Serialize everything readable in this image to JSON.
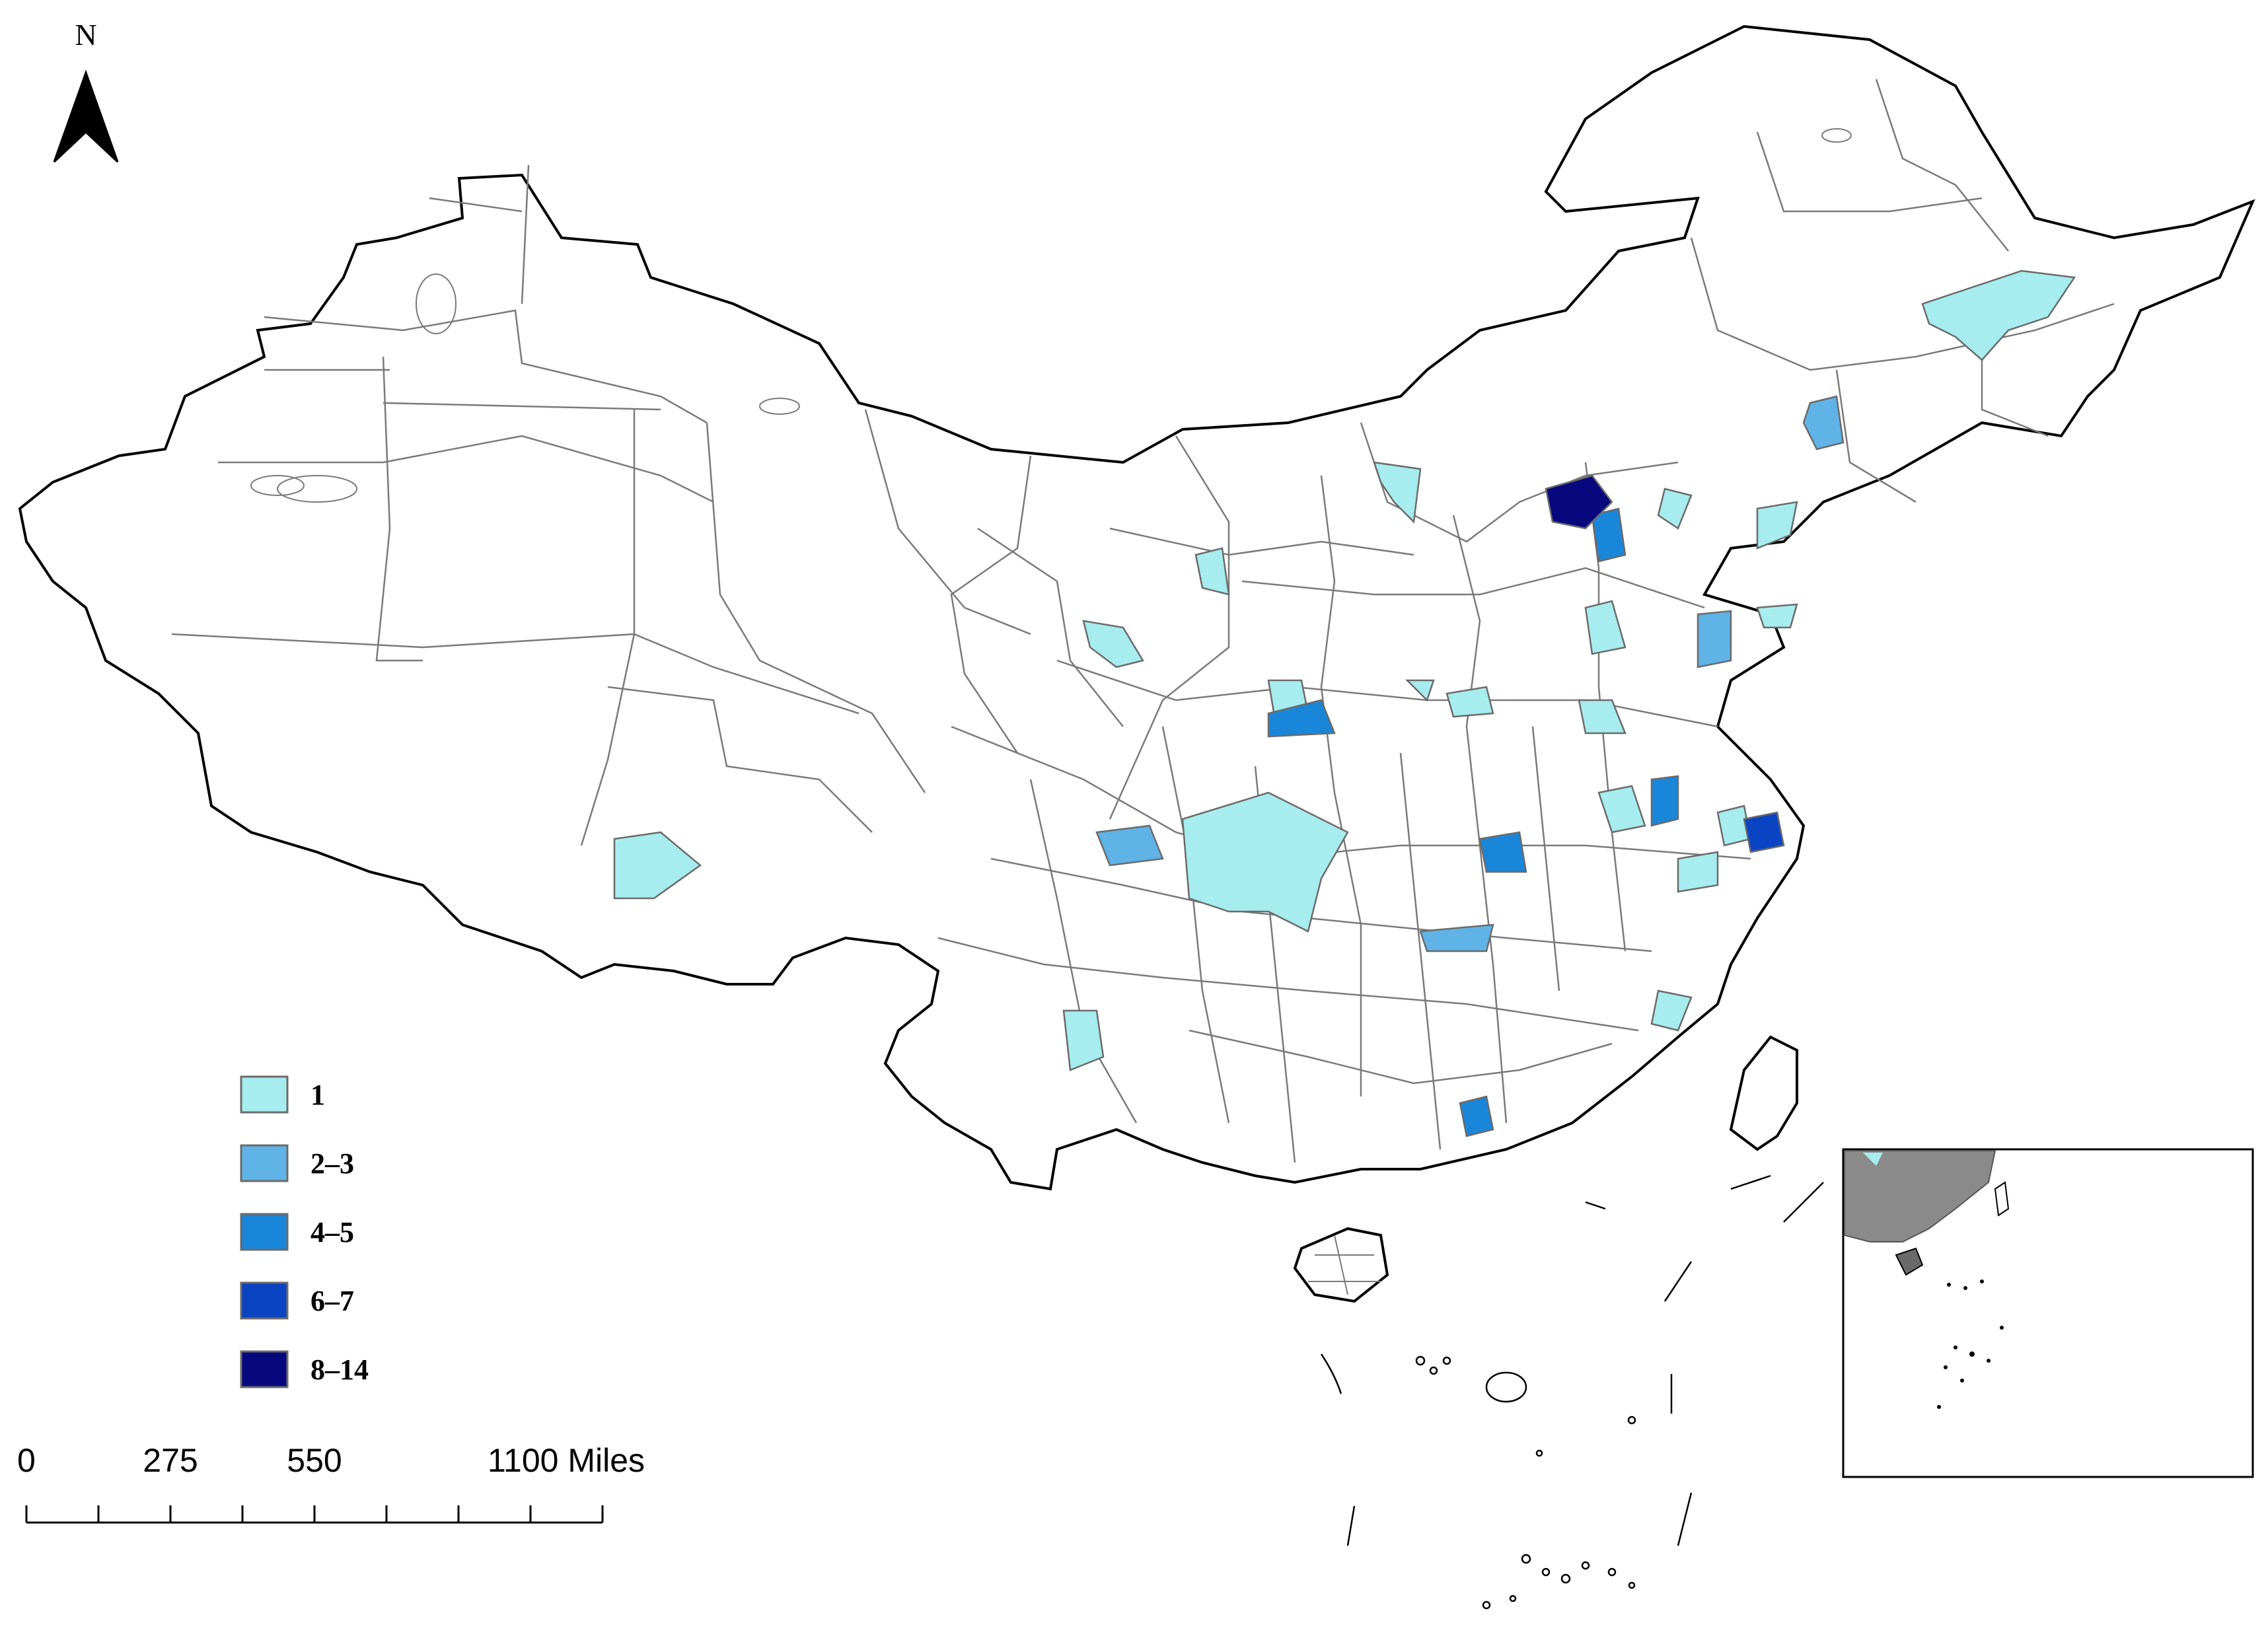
{
  "north_arrow": {
    "label": "N"
  },
  "legend": {
    "items": [
      {
        "label": "1",
        "color": "#a7ecee"
      },
      {
        "label": "2–3",
        "color": "#5fb3e6"
      },
      {
        "label": "4–5",
        "color": "#1a86d9"
      },
      {
        "label": "6–7",
        "color": "#0b44c2"
      },
      {
        "label": "8–14",
        "color": "#07087e"
      }
    ]
  },
  "scale_bar": {
    "labels": [
      "0",
      "275",
      "550",
      "1100 Miles"
    ]
  },
  "colors": {
    "land_fill": "#ffffff",
    "boundary_stroke": "#7a7a7a",
    "coast_stroke": "#000000",
    "inset_land": "#8a8a8a"
  }
}
